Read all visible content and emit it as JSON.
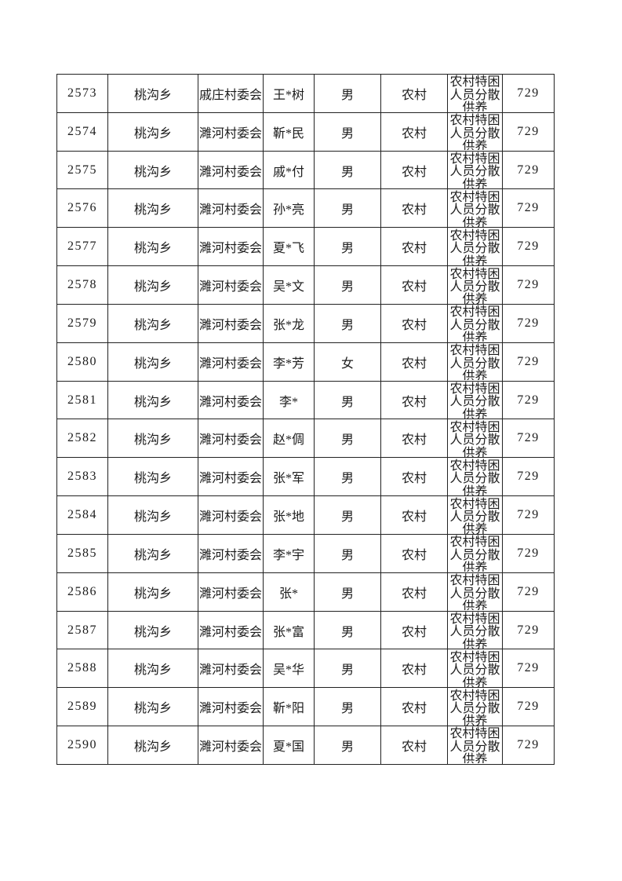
{
  "page": {
    "background": "#ffffff",
    "text_color": "#1c1c1c",
    "border_color": "#222222"
  },
  "table": {
    "rows": [
      [
        "2573",
        "桃沟乡",
        "戚庄村委会",
        "王*树",
        "男",
        "农村",
        "农村特困\n人员分散\n供养",
        "729"
      ],
      [
        "2574",
        "桃沟乡",
        "濉河村委会",
        "靳*民",
        "男",
        "农村",
        "农村特困\n人员分散\n供养",
        "729"
      ],
      [
        "2575",
        "桃沟乡",
        "濉河村委会",
        "戚*付",
        "男",
        "农村",
        "农村特困\n人员分散\n供养",
        "729"
      ],
      [
        "2576",
        "桃沟乡",
        "濉河村委会",
        "孙*亮",
        "男",
        "农村",
        "农村特困\n人员分散\n供养",
        "729"
      ],
      [
        "2577",
        "桃沟乡",
        "濉河村委会",
        "夏*飞",
        "男",
        "农村",
        "农村特困\n人员分散\n供养",
        "729"
      ],
      [
        "2578",
        "桃沟乡",
        "濉河村委会",
        "吴*文",
        "男",
        "农村",
        "农村特困\n人员分散\n供养",
        "729"
      ],
      [
        "2579",
        "桃沟乡",
        "濉河村委会",
        "张*龙",
        "男",
        "农村",
        "农村特困\n人员分散\n供养",
        "729"
      ],
      [
        "2580",
        "桃沟乡",
        "濉河村委会",
        "李*芳",
        "女",
        "农村",
        "农村特困\n人员分散\n供养",
        "729"
      ],
      [
        "2581",
        "桃沟乡",
        "濉河村委会",
        "李*",
        "男",
        "农村",
        "农村特困\n人员分散\n供养",
        "729"
      ],
      [
        "2582",
        "桃沟乡",
        "濉河村委会",
        "赵*倜",
        "男",
        "农村",
        "农村特困\n人员分散\n供养",
        "729"
      ],
      [
        "2583",
        "桃沟乡",
        "濉河村委会",
        "张*军",
        "男",
        "农村",
        "农村特困\n人员分散\n供养",
        "729"
      ],
      [
        "2584",
        "桃沟乡",
        "濉河村委会",
        "张*地",
        "男",
        "农村",
        "农村特困\n人员分散\n供养",
        "729"
      ],
      [
        "2585",
        "桃沟乡",
        "濉河村委会",
        "李*宇",
        "男",
        "农村",
        "农村特困\n人员分散\n供养",
        "729"
      ],
      [
        "2586",
        "桃沟乡",
        "濉河村委会",
        "张*",
        "男",
        "农村",
        "农村特困\n人员分散\n供养",
        "729"
      ],
      [
        "2587",
        "桃沟乡",
        "濉河村委会",
        "张*富",
        "男",
        "农村",
        "农村特困\n人员分散\n供养",
        "729"
      ],
      [
        "2588",
        "桃沟乡",
        "濉河村委会",
        "吴*华",
        "男",
        "农村",
        "农村特困\n人员分散\n供养",
        "729"
      ],
      [
        "2589",
        "桃沟乡",
        "濉河村委会",
        "靳*阳",
        "男",
        "农村",
        "农村特困\n人员分散\n供养",
        "729"
      ],
      [
        "2590",
        "桃沟乡",
        "濉河村委会",
        "夏*国",
        "男",
        "农村",
        "农村特困\n人员分散\n供养",
        "729"
      ]
    ]
  }
}
